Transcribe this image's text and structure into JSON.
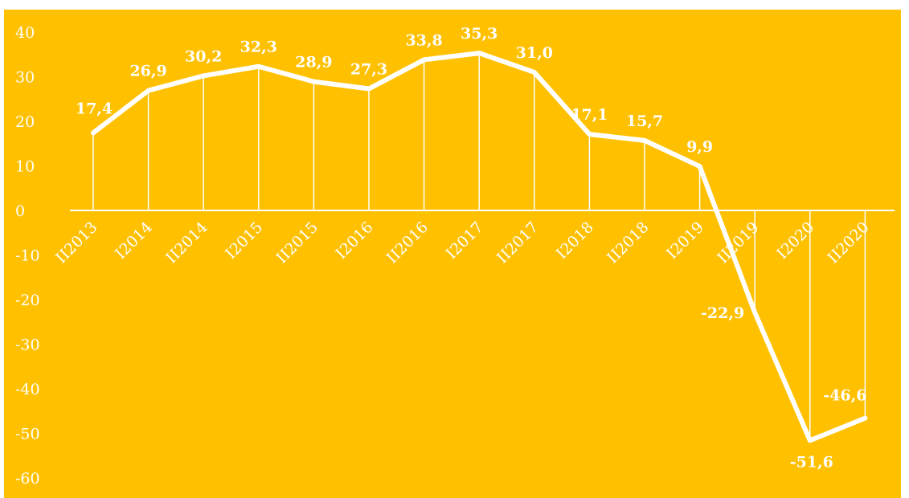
{
  "chart_data": {
    "type": "line",
    "title": "",
    "xlabel": "",
    "ylabel": "",
    "ylim": [
      -60,
      40
    ],
    "yticks": [
      40,
      30,
      20,
      10,
      0,
      -10,
      -20,
      -30,
      -40,
      -50,
      -60
    ],
    "grid": false,
    "drop_lines": true,
    "legend": "none",
    "categories": [
      "II2013",
      "I2014",
      "II2014",
      "I2015",
      "II2015",
      "I2016",
      "II2016",
      "I2017",
      "II2017",
      "I2018",
      "II2018",
      "I2019",
      "II2019",
      "I2020",
      "II2020"
    ],
    "series": [
      {
        "values": [
          17.4,
          26.9,
          30.2,
          32.3,
          28.9,
          27.3,
          33.8,
          35.3,
          31.0,
          17.1,
          15.7,
          9.9,
          -22.9,
          -51.6,
          -46.6
        ],
        "labels": [
          "17,4",
          "26,9",
          "30,2",
          "32,3",
          "28,9",
          "27,3",
          "33,8",
          "35,3",
          "31,0",
          "17,1",
          "15,7",
          "9,9",
          "-22,9",
          "-51,6",
          "-46,6"
        ]
      }
    ],
    "colors": {
      "background": "#FFC000",
      "line": "#FFFFFF",
      "text": "#FFFFFF"
    }
  }
}
